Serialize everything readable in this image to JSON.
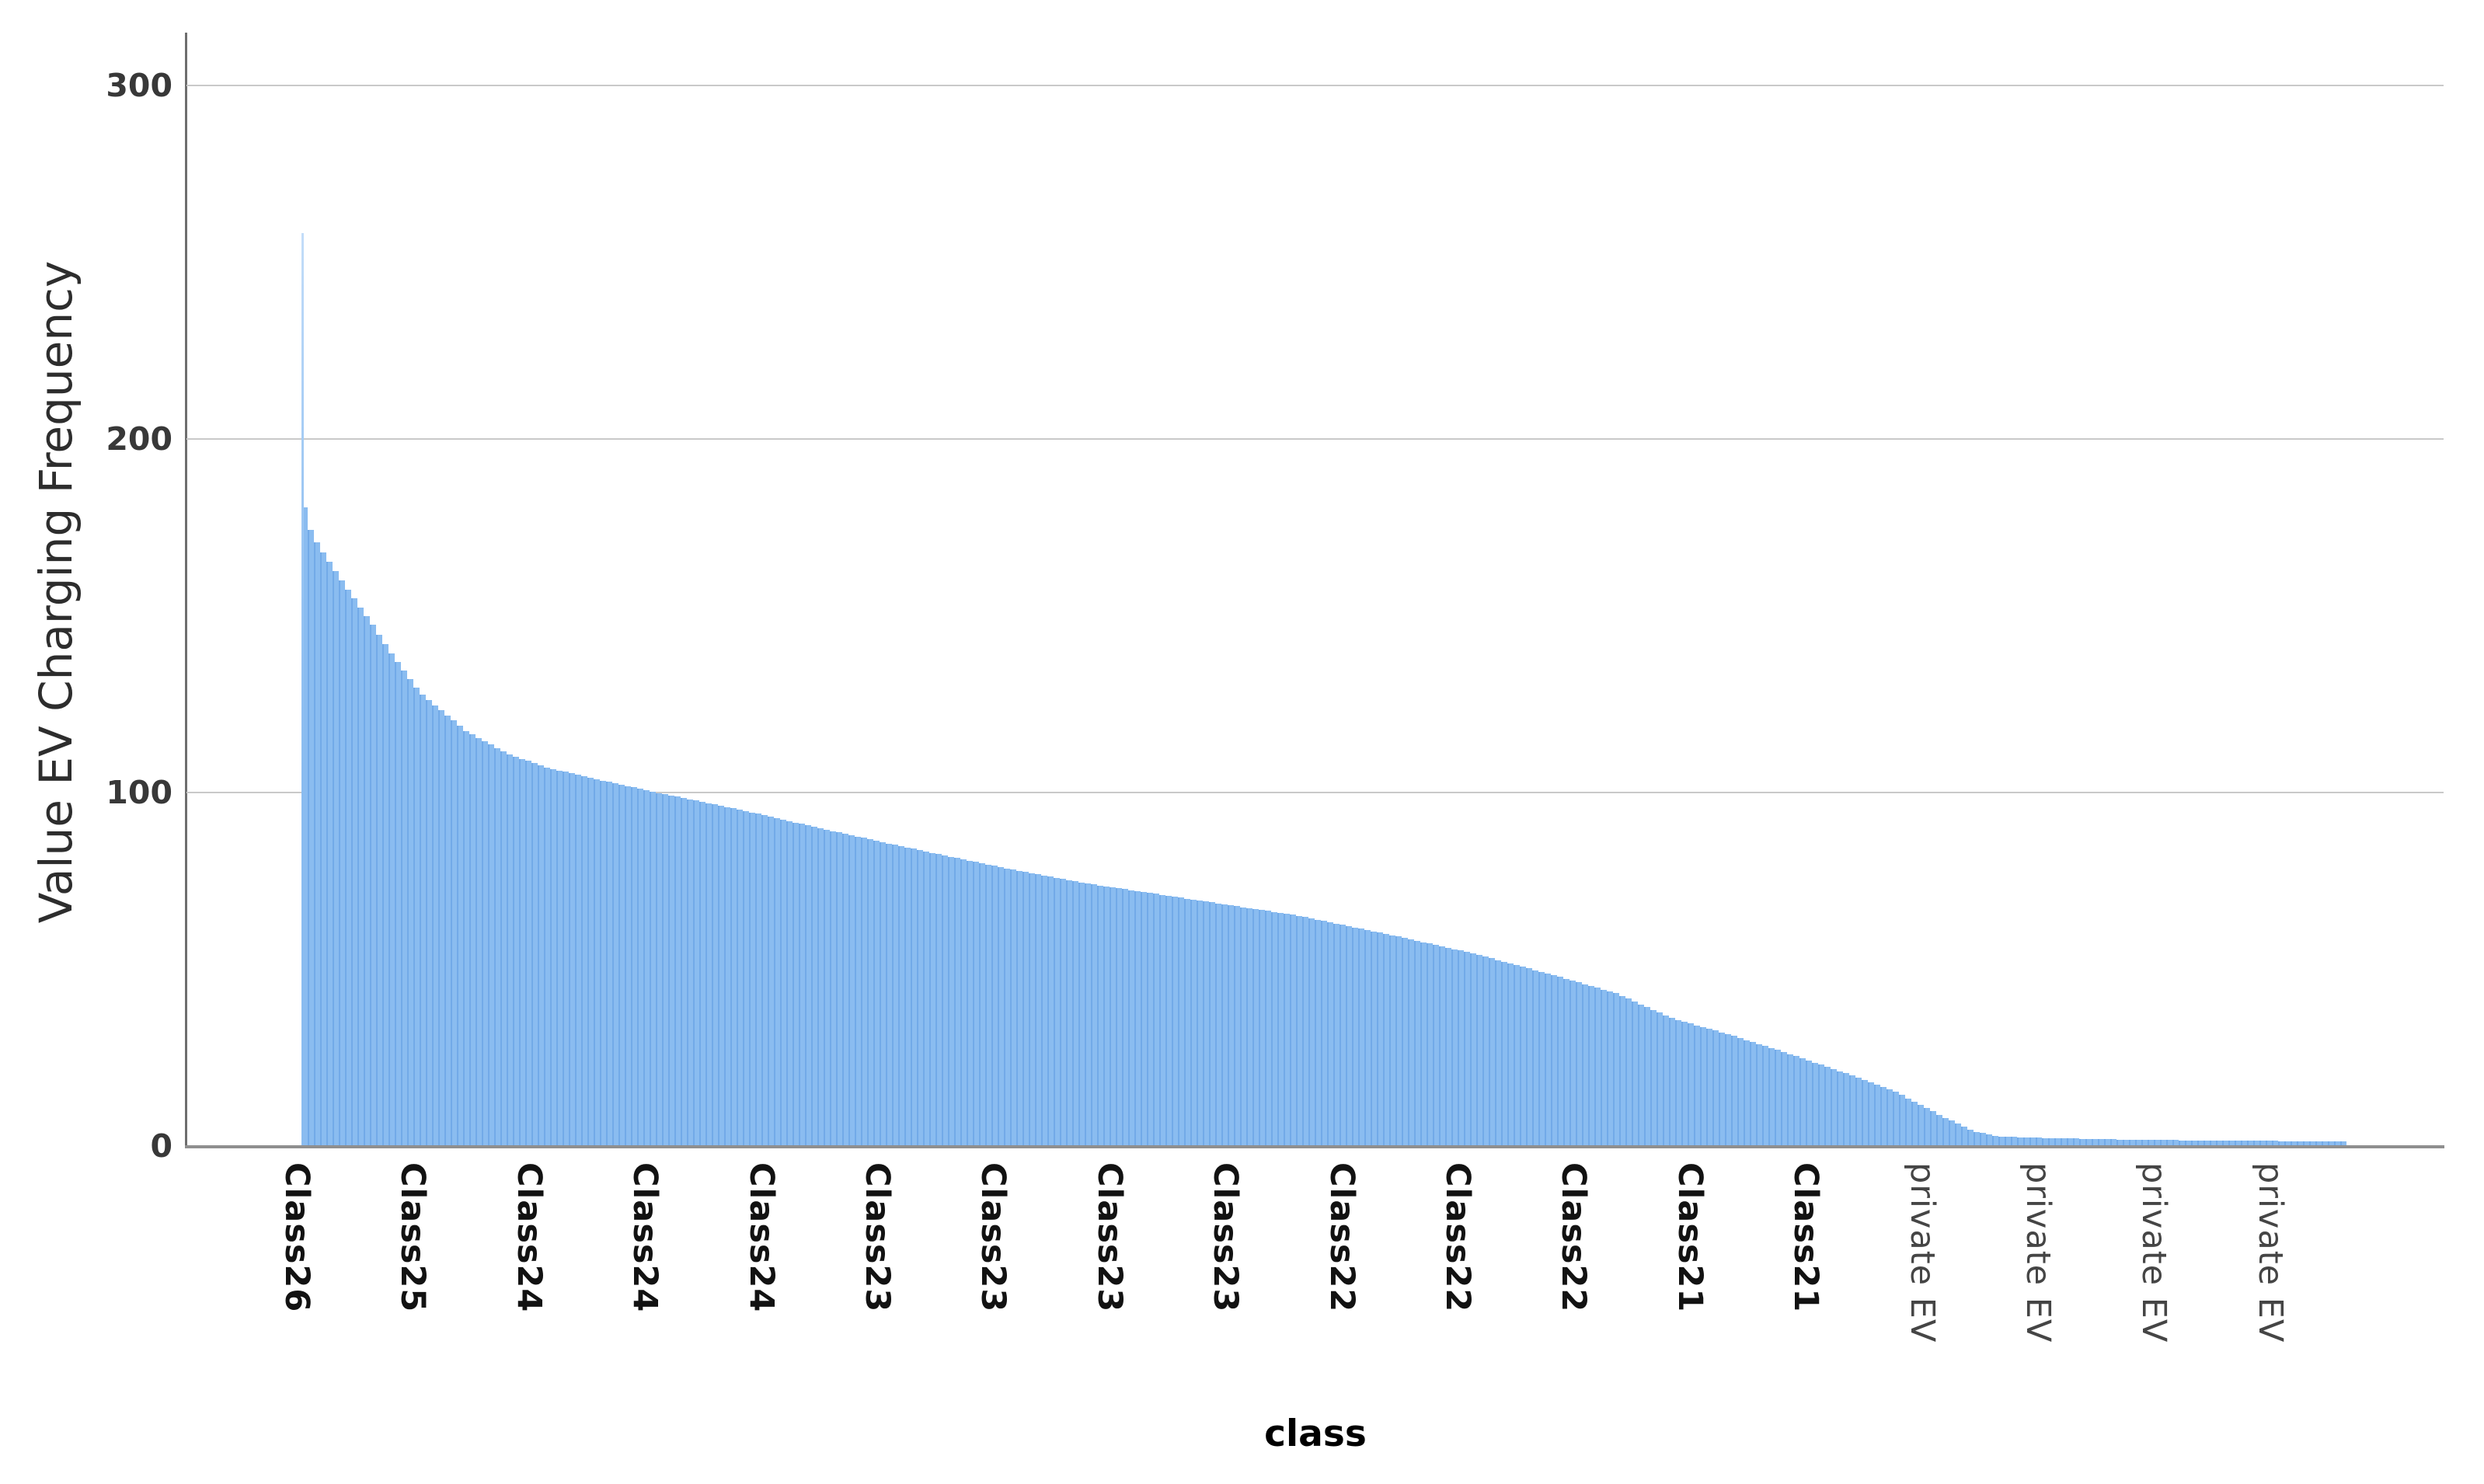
{
  "chart_data": {
    "type": "bar",
    "title": "",
    "xlabel": "class",
    "ylabel": "Value EV Charging Frequency",
    "ylim": [
      0,
      320
    ],
    "y_ticks": [
      0,
      100,
      200,
      300
    ],
    "grid": "horizontal",
    "legend": "none",
    "x_tick_labels": [
      "Class26",
      "Class25",
      "Class24",
      "Class24",
      "Class24",
      "Class23",
      "Class23",
      "Class23",
      "Class23",
      "Class22",
      "Class22",
      "Class22",
      "Class21",
      "Class21",
      "private EV",
      "private EV",
      "private EV",
      "private EV"
    ],
    "n_bars": 329,
    "peak_value": 258,
    "envelope_points": [
      [
        0.0,
        185
      ],
      [
        0.003,
        176
      ],
      [
        0.008,
        170
      ],
      [
        0.015,
        164
      ],
      [
        0.023,
        157
      ],
      [
        0.034,
        148
      ],
      [
        0.043,
        140
      ],
      [
        0.058,
        128
      ],
      [
        0.081,
        117
      ],
      [
        0.1,
        111
      ],
      [
        0.119,
        107
      ],
      [
        0.141,
        104
      ],
      [
        0.172,
        100
      ],
      [
        0.214,
        95
      ],
      [
        0.259,
        89
      ],
      [
        0.29,
        85
      ],
      [
        0.339,
        79
      ],
      [
        0.385,
        74
      ],
      [
        0.442,
        69
      ],
      [
        0.487,
        65
      ],
      [
        0.537,
        59
      ],
      [
        0.575,
        54
      ],
      [
        0.613,
        48
      ],
      [
        0.643,
        43
      ],
      [
        0.67,
        36
      ],
      [
        0.7,
        31
      ],
      [
        0.727,
        26
      ],
      [
        0.757,
        20
      ],
      [
        0.78,
        15
      ],
      [
        0.803,
        8
      ],
      [
        0.818,
        4
      ],
      [
        0.829,
        2.5
      ],
      [
        0.856,
        2
      ],
      [
        0.901,
        1.5
      ],
      [
        0.97,
        1.2
      ],
      [
        1.0,
        1
      ]
    ],
    "colors": {
      "bar_fill": "#8abcf0",
      "bar_stripe": "#72aae8",
      "spike_fill": "#9bc6f3",
      "grid_line": "#c9c9c9",
      "axis_line": "#6e6e6e",
      "base_line": "#8f8f8f",
      "y_tick_text": "#383838",
      "class_label_text": "#121212",
      "private_label_text": "#454545",
      "x_title_text": "#000000",
      "y_title_text": "#2d2d2d"
    }
  }
}
